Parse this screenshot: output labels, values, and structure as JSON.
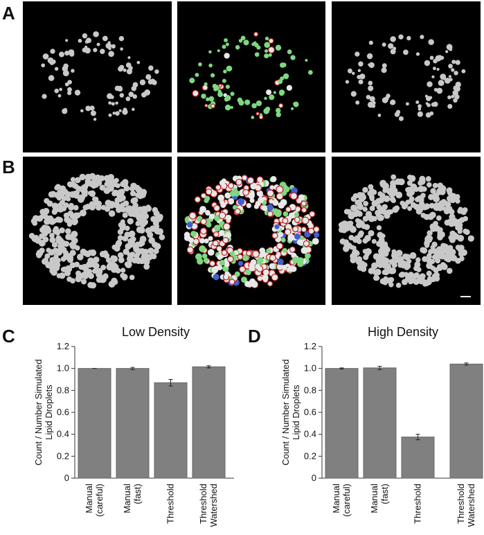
{
  "panel_labels": [
    "A",
    "B",
    "C",
    "D"
  ],
  "chart_data": [
    {
      "type": "bar",
      "title": "Low Density",
      "y_label": [
        "Count / Number Simulated",
        "Lipid Droplets"
      ],
      "categories": [
        "Manual (careful)",
        "Manual (fast)",
        "Threshold",
        "Threshold Watershed"
      ],
      "values": [
        1.0,
        1.0,
        0.87,
        1.015
      ],
      "errors": [
        0,
        0.01,
        0.03,
        0.01
      ],
      "color": "#808080",
      "ylim": [
        0,
        1.2
      ],
      "yticks": [
        0,
        0.2,
        0.4,
        0.6,
        0.8,
        {
          "value": 1,
          "label": "1.0"
        },
        1.2
      ]
    },
    {
      "type": "bar",
      "title": "High Density",
      "y_label": [
        "Count / Number Simulated",
        "Lipid Droplets"
      ],
      "categories": [
        "Manual (careful)",
        "Manual (fast)",
        "Threshold",
        "Threshold Watershed"
      ],
      "values": [
        1.0,
        1.005,
        0.375,
        1.04
      ],
      "errors": [
        0.005,
        0.015,
        0.025,
        0.01
      ],
      "color": "#808080",
      "ylim": [
        0,
        1.2
      ],
      "yticks": [
        0,
        0.2,
        0.4,
        0.6,
        0.8,
        {
          "value": 1,
          "label": "1.0"
        },
        1.2
      ]
    }
  ]
}
